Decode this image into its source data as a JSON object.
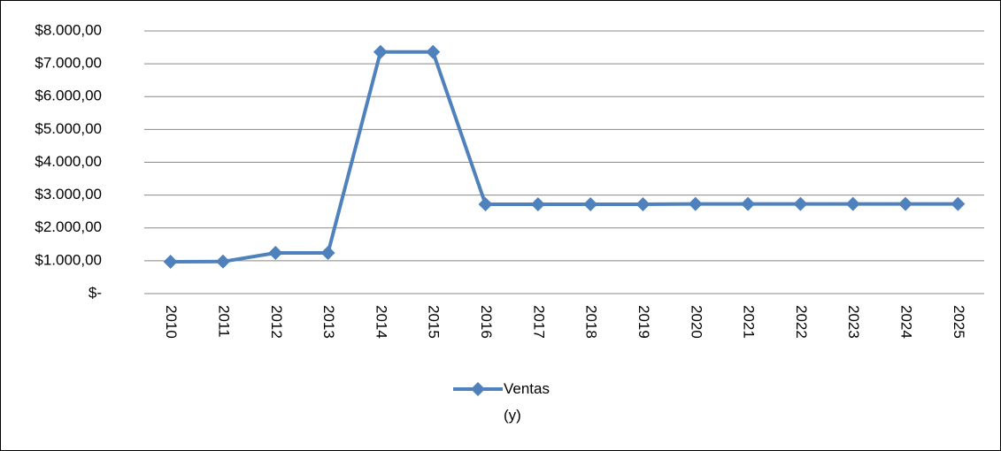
{
  "chart_data": {
    "type": "line",
    "categories": [
      "2010",
      "2011",
      "2012",
      "2013",
      "2014",
      "2015",
      "2016",
      "2017",
      "2018",
      "2019",
      "2020",
      "2021",
      "2022",
      "2023",
      "2024",
      "2025"
    ],
    "series": [
      {
        "name": "Ventas (y)",
        "color": "#4f81bd",
        "values": [
          970,
          975,
          1240,
          1240,
          7360,
          7360,
          2720,
          2720,
          2720,
          2720,
          2730,
          2730,
          2730,
          2730,
          2730,
          2730
        ]
      }
    ],
    "ylim": [
      0,
      8000
    ],
    "yticks": [
      {
        "value": 0,
        "label": "$-"
      },
      {
        "value": 1000,
        "label": "$1.000,00"
      },
      {
        "value": 2000,
        "label": "$2.000,00"
      },
      {
        "value": 3000,
        "label": "$3.000,00"
      },
      {
        "value": 4000,
        "label": "$4.000,00"
      },
      {
        "value": 5000,
        "label": "$5.000,00"
      },
      {
        "value": 6000,
        "label": "$6.000,00"
      },
      {
        "value": 7000,
        "label": "$7.000,00"
      },
      {
        "value": 8000,
        "label": "$8.000,00"
      }
    ],
    "grid": true,
    "legend": "bottom"
  }
}
